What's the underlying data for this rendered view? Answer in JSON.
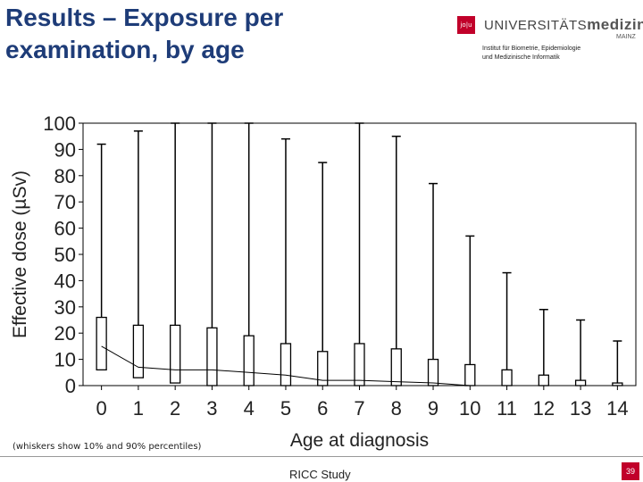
{
  "slide": {
    "title": "Results – Exposure per\nexamination, by age",
    "note": "(whiskers show 10% and 90% percentiles)",
    "footer": "RICC Study",
    "page_number": "39"
  },
  "logo": {
    "box_text": "jo|u",
    "name_prefix": "UNIVERSITÄTS",
    "name_bold": "medizin.",
    "sub": "MAINZ",
    "institute": "Institut für Biometrie, Epidemiologie\nund Medizinische Informatik"
  },
  "chart_data": {
    "type": "box",
    "title": "",
    "xlabel": "Age at diagnosis",
    "ylabel": "Effective dose (µSv)",
    "ylim": [
      0,
      100
    ],
    "yticks": [
      0,
      10,
      20,
      30,
      40,
      50,
      60,
      70,
      80,
      90,
      100
    ],
    "categories": [
      "0",
      "1",
      "2",
      "3",
      "4",
      "5",
      "6",
      "7",
      "8",
      "9",
      "10",
      "11",
      "12",
      "13",
      "14"
    ],
    "whisker_low": [
      0,
      0,
      0,
      0,
      0,
      0,
      0,
      0,
      0,
      0,
      0,
      0,
      0,
      0,
      0
    ],
    "whisker_high": [
      92,
      97,
      100,
      100,
      100,
      94,
      85,
      100,
      95,
      77,
      57,
      43,
      29,
      25,
      17
    ],
    "q1": [
      6,
      3,
      1,
      0,
      0,
      0,
      0,
      0,
      0,
      0,
      0,
      0,
      0,
      0,
      0
    ],
    "q3": [
      26,
      23,
      23,
      22,
      19,
      16,
      13,
      16,
      14,
      10,
      8,
      6,
      4,
      2,
      1
    ],
    "median_line": [
      15,
      7,
      6,
      6,
      5,
      4,
      2,
      2,
      1.5,
      1,
      0,
      0,
      0,
      0,
      0
    ],
    "grid": false,
    "legend": "none"
  }
}
